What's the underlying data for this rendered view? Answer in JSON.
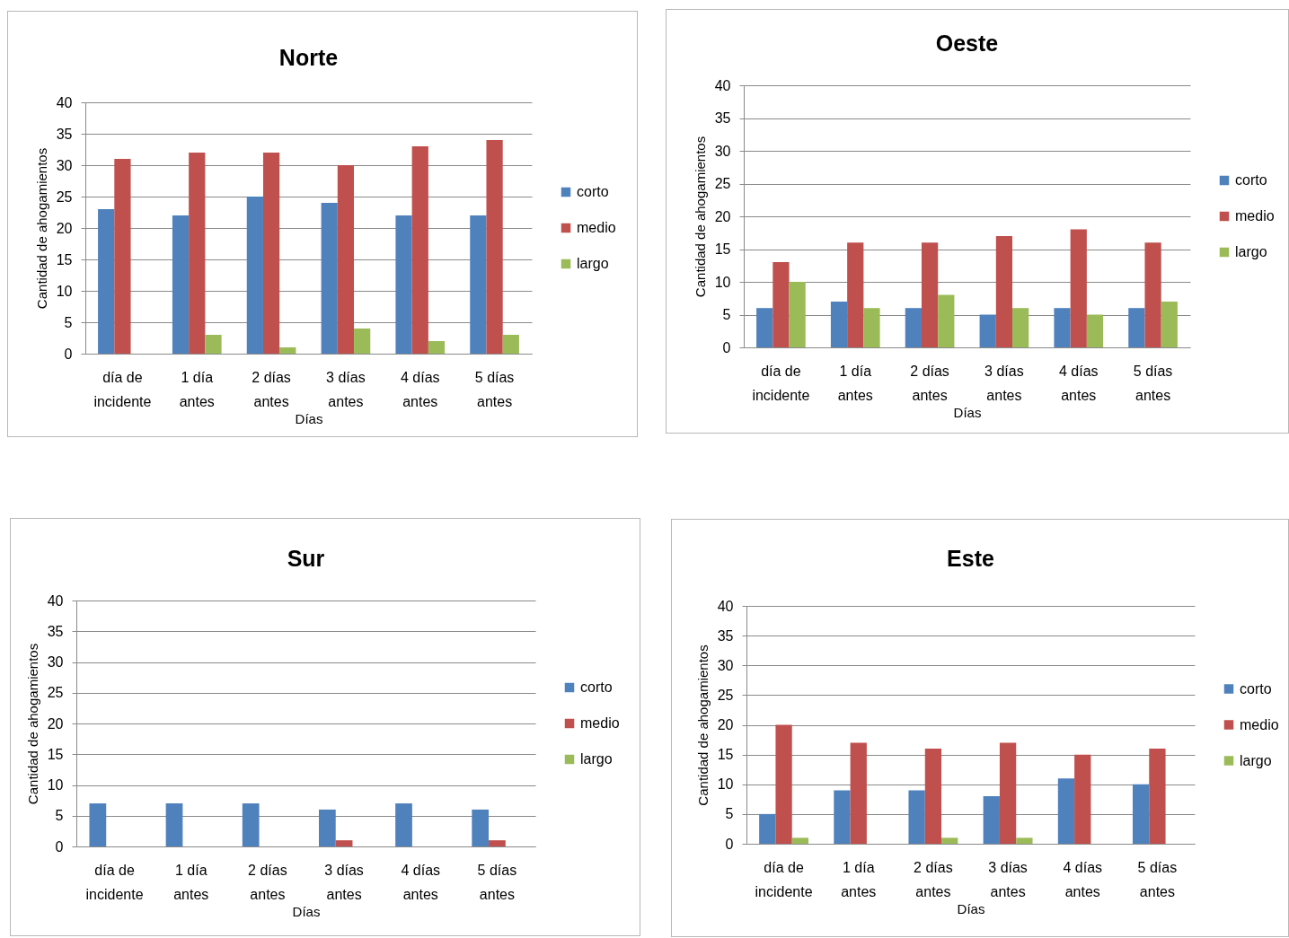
{
  "chart_data": [
    {
      "type": "bar",
      "title": "Norte",
      "xlabel": "Días",
      "ylabel": "Cantidad de ahogamientos",
      "categories": [
        "día de incidente",
        "1 día antes",
        "2 días antes",
        "3 días antes",
        "4 días antes",
        "5 días antes"
      ],
      "series": [
        {
          "name": "corto",
          "color": "#4f81bd",
          "values": [
            23,
            22,
            25,
            24,
            22,
            22
          ]
        },
        {
          "name": "medio",
          "color": "#c0504d",
          "values": [
            31,
            32,
            32,
            30,
            33,
            34
          ]
        },
        {
          "name": "largo",
          "color": "#9bbb59",
          "values": [
            0,
            3,
            1,
            4,
            2,
            3
          ]
        }
      ],
      "ylim": [
        0,
        40
      ],
      "yticks": [
        0,
        5,
        10,
        15,
        20,
        25,
        30,
        35,
        40
      ],
      "grid": "y",
      "legend": "right"
    },
    {
      "type": "bar",
      "title": "Oeste",
      "xlabel": "Días",
      "ylabel": "Cantidad de ahogamientos",
      "categories": [
        "día de incidente",
        "1 día antes",
        "2 días antes",
        "3 días antes",
        "4 días antes",
        "5 días antes"
      ],
      "series": [
        {
          "name": "corto",
          "color": "#4f81bd",
          "values": [
            6,
            7,
            6,
            5,
            6,
            6
          ]
        },
        {
          "name": "medio",
          "color": "#c0504d",
          "values": [
            13,
            16,
            16,
            17,
            18,
            16
          ]
        },
        {
          "name": "largo",
          "color": "#9bbb59",
          "values": [
            10,
            6,
            8,
            6,
            5,
            7
          ]
        }
      ],
      "ylim": [
        0,
        40
      ],
      "yticks": [
        0,
        5,
        10,
        15,
        20,
        25,
        30,
        35,
        40
      ],
      "grid": "y",
      "legend": "right"
    },
    {
      "type": "bar",
      "title": "Sur",
      "xlabel": "Días",
      "ylabel": "Cantidad de ahogamientos",
      "categories": [
        "día de incidente",
        "1 día antes",
        "2 días antes",
        "3 días antes",
        "4 días antes",
        "5 días antes"
      ],
      "series": [
        {
          "name": "corto",
          "color": "#4f81bd",
          "values": [
            7,
            7,
            7,
            6,
            7,
            6
          ]
        },
        {
          "name": "medio",
          "color": "#c0504d",
          "values": [
            0,
            0,
            0,
            1,
            0,
            1
          ]
        },
        {
          "name": "largo",
          "color": "#9bbb59",
          "values": [
            0,
            0,
            0,
            0,
            0,
            0
          ]
        }
      ],
      "ylim": [
        0,
        40
      ],
      "yticks": [
        0,
        5,
        10,
        15,
        20,
        25,
        30,
        35,
        40
      ],
      "grid": "y",
      "legend": "right"
    },
    {
      "type": "bar",
      "title": "Este",
      "xlabel": "Días",
      "ylabel": "Cantidad de ahogamientos",
      "categories": [
        "día de incidente",
        "1 día antes",
        "2 días antes",
        "3 días antes",
        "4 días antes",
        "5 días antes"
      ],
      "series": [
        {
          "name": "corto",
          "color": "#4f81bd",
          "values": [
            5,
            9,
            9,
            8,
            11,
            10
          ]
        },
        {
          "name": "medio",
          "color": "#c0504d",
          "values": [
            20,
            17,
            16,
            17,
            15,
            16
          ]
        },
        {
          "name": "largo",
          "color": "#9bbb59",
          "values": [
            1,
            0,
            1,
            1,
            0,
            0
          ]
        }
      ],
      "ylim": [
        0,
        40
      ],
      "yticks": [
        0,
        5,
        10,
        15,
        20,
        25,
        30,
        35,
        40
      ],
      "grid": "y",
      "legend": "right"
    }
  ]
}
